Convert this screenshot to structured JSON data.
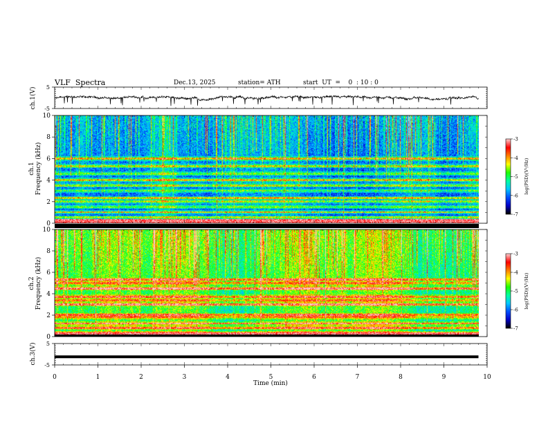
{
  "header": {
    "title": "VLF  Spectra",
    "date": "Dec.13, 2025",
    "station": "station= ATH",
    "start_ut": "start  UT  =    0  : 10 : 0"
  },
  "colors": {
    "waveform": "#000000",
    "colormap": [
      "#000000",
      "#0000c8",
      "#0050ff",
      "#00c8ff",
      "#00ffa0",
      "#20ff00",
      "#ffff00",
      "#ff8000",
      "#ff0000",
      "#ffc8c8"
    ]
  },
  "chart_data": [
    {
      "type": "line",
      "name": "ch1-waveform",
      "ylabel": "ch.1(V)",
      "ylim": [
        -5,
        5
      ],
      "yticks": [
        "5",
        "-5"
      ],
      "xlim": [
        0,
        10
      ],
      "data_extent_min": [
        0,
        9.8
      ],
      "approx_level": -0.3,
      "note_shape": "noisy trace with brief negative spikes"
    },
    {
      "type": "heatmap",
      "name": "ch1-spectrogram",
      "ylabel": "ch.1\nFrequency  (kHz)",
      "xlim": [
        0,
        10
      ],
      "ylim": [
        0,
        10
      ],
      "yticks": [
        "0",
        "2",
        "4",
        "6",
        "8",
        "10"
      ],
      "colorbar": {
        "label": "log(PSD)(V²/Hz)",
        "range": [
          -7,
          -3
        ],
        "ticks": [
          "-3",
          "-4",
          "-5",
          "-6",
          "-7"
        ]
      },
      "bands_khz": [
        0.2,
        0.5,
        1.0,
        1.5,
        2.0,
        2.3,
        3.0,
        3.5,
        4.0,
        4.6,
        5.3,
        6.0
      ],
      "baseline_level": -5.8
    },
    {
      "type": "heatmap",
      "name": "ch2-spectrogram",
      "ylabel": "ch.2\nFrequency  (kHz)",
      "xlim": [
        0,
        10
      ],
      "ylim": [
        0,
        10
      ],
      "yticks": [
        "0",
        "2",
        "4",
        "6",
        "8",
        "10"
      ],
      "colorbar": {
        "label": "log(PSD)(V²/Hz)",
        "range": [
          -7,
          -3
        ],
        "ticks": [
          "-3",
          "-4",
          "-5",
          "-6",
          "-7"
        ]
      },
      "bands_khz": [
        0.3,
        0.8,
        1.2,
        1.8,
        2.0,
        3.0,
        3.4,
        3.7,
        4.5,
        5.0,
        5.3
      ],
      "baseline_level": -5.0
    },
    {
      "type": "line",
      "name": "ch3-waveform",
      "ylabel": "ch.3(V)",
      "xlabel": "Time  (min)",
      "ylim": [
        -5,
        5
      ],
      "yticks": [
        "5",
        "-5"
      ],
      "xlim": [
        0,
        10
      ],
      "xticks": [
        "0",
        "1",
        "2",
        "3",
        "4",
        "5",
        "6",
        "7",
        "8",
        "9",
        "10"
      ],
      "approx_level": -1.2
    }
  ]
}
